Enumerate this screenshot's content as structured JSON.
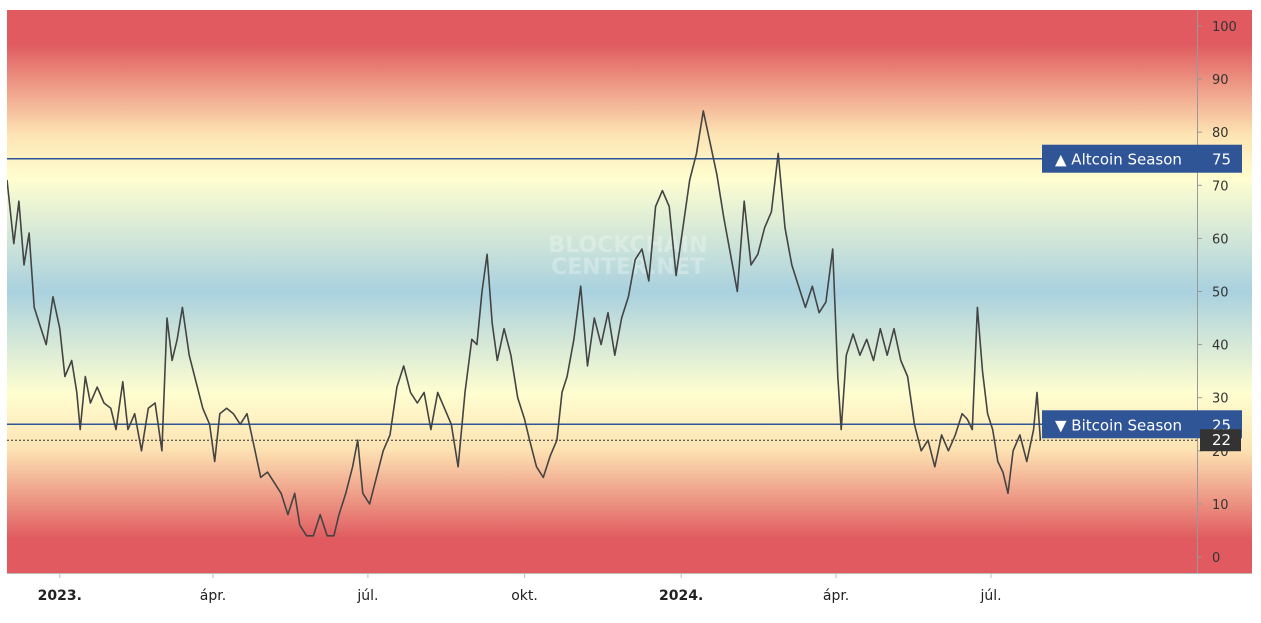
{
  "watermark": [
    "BLOCKCHAIN",
    "CENTER.NET"
  ],
  "chart_data": {
    "type": "line",
    "title": "",
    "xlabel": "",
    "ylabel": "",
    "ylim": [
      -3,
      103
    ],
    "yticks": [
      0,
      10,
      20,
      30,
      40,
      50,
      60,
      70,
      80,
      90,
      100
    ],
    "xlim": [
      "2022-12-01",
      "2024-10-30"
    ],
    "xticks": [
      {
        "date": "2023-01-01",
        "label": "2023.",
        "bold": true
      },
      {
        "date": "2023-04-01",
        "label": "ápr.",
        "bold": false
      },
      {
        "date": "2023-07-01",
        "label": "júl.",
        "bold": false
      },
      {
        "date": "2023-10-01",
        "label": "okt.",
        "bold": false
      },
      {
        "date": "2024-01-01",
        "label": "2024.",
        "bold": true
      },
      {
        "date": "2024-04-01",
        "label": "ápr.",
        "bold": false
      },
      {
        "date": "2024-07-01",
        "label": "júl.",
        "bold": false
      }
    ],
    "thresholds": [
      {
        "value": 75,
        "label": "▲ Altcoin Season",
        "color": "#2f5597"
      },
      {
        "value": 25,
        "label": "▼ Bitcoin Season",
        "color": "#2f5597"
      }
    ],
    "current": {
      "value": 22,
      "label": "22"
    },
    "background_colors": [
      "#e05a5f",
      "#fde3b3",
      "#fefed0",
      "#a9d1df",
      "#fde3b3",
      "#e05a5f"
    ],
    "series": [
      {
        "color": "#444444",
        "points": [
          [
            "2022-12-01",
            71
          ],
          [
            "2022-12-05",
            59
          ],
          [
            "2022-12-08",
            67
          ],
          [
            "2022-12-11",
            55
          ],
          [
            "2022-12-14",
            61
          ],
          [
            "2022-12-17",
            47
          ],
          [
            "2022-12-20",
            44
          ],
          [
            "2022-12-24",
            40
          ],
          [
            "2022-12-28",
            49
          ],
          [
            "2023-01-01",
            43
          ],
          [
            "2023-01-04",
            34
          ],
          [
            "2023-01-08",
            37
          ],
          [
            "2023-01-11",
            31
          ],
          [
            "2023-01-13",
            24
          ],
          [
            "2023-01-16",
            34
          ],
          [
            "2023-01-19",
            29
          ],
          [
            "2023-01-23",
            32
          ],
          [
            "2023-01-27",
            29
          ],
          [
            "2023-01-31",
            28
          ],
          [
            "2023-02-03",
            24
          ],
          [
            "2023-02-07",
            33
          ],
          [
            "2023-02-10",
            24
          ],
          [
            "2023-02-14",
            27
          ],
          [
            "2023-02-18",
            20
          ],
          [
            "2023-02-22",
            28
          ],
          [
            "2023-02-26",
            29
          ],
          [
            "2023-03-02",
            20
          ],
          [
            "2023-03-05",
            45
          ],
          [
            "2023-03-08",
            37
          ],
          [
            "2023-03-11",
            41
          ],
          [
            "2023-03-14",
            47
          ],
          [
            "2023-03-18",
            38
          ],
          [
            "2023-03-22",
            33
          ],
          [
            "2023-03-26",
            28
          ],
          [
            "2023-03-30",
            25
          ],
          [
            "2023-04-02",
            18
          ],
          [
            "2023-04-05",
            27
          ],
          [
            "2023-04-09",
            28
          ],
          [
            "2023-04-13",
            27
          ],
          [
            "2023-04-17",
            25
          ],
          [
            "2023-04-21",
            27
          ],
          [
            "2023-04-25",
            21
          ],
          [
            "2023-04-29",
            15
          ],
          [
            "2023-05-03",
            16
          ],
          [
            "2023-05-07",
            14
          ],
          [
            "2023-05-11",
            12
          ],
          [
            "2023-05-15",
            8
          ],
          [
            "2023-05-19",
            12
          ],
          [
            "2023-05-22",
            6
          ],
          [
            "2023-05-26",
            4
          ],
          [
            "2023-05-30",
            4
          ],
          [
            "2023-06-03",
            8
          ],
          [
            "2023-06-07",
            4
          ],
          [
            "2023-06-11",
            4
          ],
          [
            "2023-06-14",
            8
          ],
          [
            "2023-06-18",
            12
          ],
          [
            "2023-06-22",
            17
          ],
          [
            "2023-06-25",
            22
          ],
          [
            "2023-06-28",
            12
          ],
          [
            "2023-07-02",
            10
          ],
          [
            "2023-07-06",
            15
          ],
          [
            "2023-07-10",
            20
          ],
          [
            "2023-07-14",
            23
          ],
          [
            "2023-07-18",
            32
          ],
          [
            "2023-07-22",
            36
          ],
          [
            "2023-07-26",
            31
          ],
          [
            "2023-07-30",
            29
          ],
          [
            "2023-08-03",
            31
          ],
          [
            "2023-08-07",
            24
          ],
          [
            "2023-08-11",
            31
          ],
          [
            "2023-08-15",
            28
          ],
          [
            "2023-08-19",
            25
          ],
          [
            "2023-08-23",
            17
          ],
          [
            "2023-08-27",
            31
          ],
          [
            "2023-08-31",
            41
          ],
          [
            "2023-09-03",
            40
          ],
          [
            "2023-09-06",
            50
          ],
          [
            "2023-09-09",
            57
          ],
          [
            "2023-09-12",
            44
          ],
          [
            "2023-09-15",
            37
          ],
          [
            "2023-09-19",
            43
          ],
          [
            "2023-09-23",
            38
          ],
          [
            "2023-09-27",
            30
          ],
          [
            "2023-10-01",
            26
          ],
          [
            "2023-10-04",
            22
          ],
          [
            "2023-10-08",
            17
          ],
          [
            "2023-10-12",
            15
          ],
          [
            "2023-10-16",
            19
          ],
          [
            "2023-10-20",
            22
          ],
          [
            "2023-10-23",
            31
          ],
          [
            "2023-10-26",
            34
          ],
          [
            "2023-10-30",
            41
          ],
          [
            "2023-11-03",
            51
          ],
          [
            "2023-11-07",
            36
          ],
          [
            "2023-11-11",
            45
          ],
          [
            "2023-11-15",
            40
          ],
          [
            "2023-11-19",
            46
          ],
          [
            "2023-11-23",
            38
          ],
          [
            "2023-11-27",
            45
          ],
          [
            "2023-12-01",
            49
          ],
          [
            "2023-12-05",
            56
          ],
          [
            "2023-12-09",
            58
          ],
          [
            "2023-12-13",
            52
          ],
          [
            "2023-12-17",
            66
          ],
          [
            "2023-12-21",
            69
          ],
          [
            "2023-12-25",
            66
          ],
          [
            "2023-12-29",
            53
          ],
          [
            "2024-01-02",
            62
          ],
          [
            "2024-01-06",
            71
          ],
          [
            "2024-01-10",
            76
          ],
          [
            "2024-01-14",
            84
          ],
          [
            "2024-01-18",
            78
          ],
          [
            "2024-01-22",
            72
          ],
          [
            "2024-01-26",
            64
          ],
          [
            "2024-01-30",
            57
          ],
          [
            "2024-02-03",
            50
          ],
          [
            "2024-02-07",
            67
          ],
          [
            "2024-02-11",
            55
          ],
          [
            "2024-02-15",
            57
          ],
          [
            "2024-02-19",
            62
          ],
          [
            "2024-02-23",
            65
          ],
          [
            "2024-02-27",
            76
          ],
          [
            "2024-03-02",
            62
          ],
          [
            "2024-03-06",
            55
          ],
          [
            "2024-03-10",
            51
          ],
          [
            "2024-03-14",
            47
          ],
          [
            "2024-03-18",
            51
          ],
          [
            "2024-03-22",
            46
          ],
          [
            "2024-03-26",
            48
          ],
          [
            "2024-03-30",
            58
          ],
          [
            "2024-04-02",
            34
          ],
          [
            "2024-04-04",
            24
          ],
          [
            "2024-04-07",
            38
          ],
          [
            "2024-04-11",
            42
          ],
          [
            "2024-04-15",
            38
          ],
          [
            "2024-04-19",
            41
          ],
          [
            "2024-04-23",
            37
          ],
          [
            "2024-04-27",
            43
          ],
          [
            "2024-05-01",
            38
          ],
          [
            "2024-05-05",
            43
          ],
          [
            "2024-05-09",
            37
          ],
          [
            "2024-05-13",
            34
          ],
          [
            "2024-05-17",
            25
          ],
          [
            "2024-05-21",
            20
          ],
          [
            "2024-05-25",
            22
          ],
          [
            "2024-05-29",
            17
          ],
          [
            "2024-06-02",
            23
          ],
          [
            "2024-06-06",
            20
          ],
          [
            "2024-06-10",
            23
          ],
          [
            "2024-06-14",
            27
          ],
          [
            "2024-06-17",
            26
          ],
          [
            "2024-06-20",
            24
          ],
          [
            "2024-06-23",
            47
          ],
          [
            "2024-06-26",
            35
          ],
          [
            "2024-06-29",
            27
          ],
          [
            "2024-07-02",
            24
          ],
          [
            "2024-07-05",
            18
          ],
          [
            "2024-07-08",
            16
          ],
          [
            "2024-07-11",
            12
          ],
          [
            "2024-07-14",
            20
          ],
          [
            "2024-07-18",
            23
          ],
          [
            "2024-07-22",
            18
          ],
          [
            "2024-07-26",
            24
          ],
          [
            "2024-07-28",
            31
          ],
          [
            "2024-07-30",
            22
          ]
        ]
      }
    ]
  }
}
